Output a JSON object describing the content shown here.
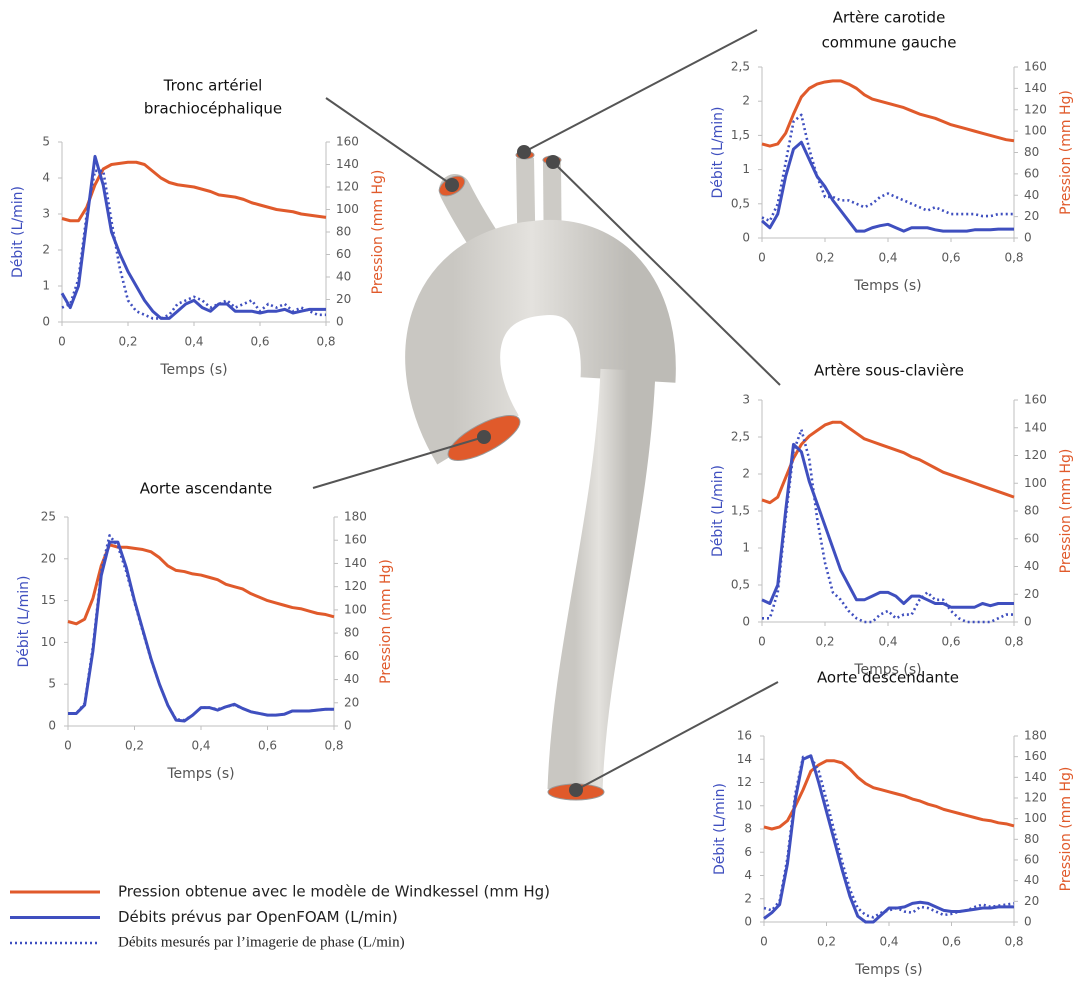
{
  "chart_data": [
    {
      "type": "line",
      "title": [
        "Tronc artériel",
        "brachiocéphalique"
      ],
      "xlabel": "Temps (s)",
      "ylabel": "Débit (L/min)",
      "y2label": "Pression (mm Hg)",
      "x": [
        0,
        0.025,
        0.05,
        0.075,
        0.1,
        0.125,
        0.15,
        0.175,
        0.2,
        0.225,
        0.25,
        0.275,
        0.3,
        0.325,
        0.35,
        0.375,
        0.4,
        0.425,
        0.45,
        0.475,
        0.5,
        0.525,
        0.55,
        0.575,
        0.6,
        0.625,
        0.65,
        0.675,
        0.7,
        0.725,
        0.75,
        0.775,
        0.8
      ],
      "series": [
        {
          "name": "Pression obtenue avec le modèle de Windkessel (mm Hg)",
          "color": "#e05a2b",
          "style": "solid",
          "axis": "y2",
          "values": [
            92,
            90,
            90,
            102,
            122,
            136,
            140,
            141,
            142,
            142,
            140,
            134,
            128,
            124,
            122,
            121,
            120,
            118,
            116,
            113,
            112,
            111,
            109,
            106,
            104,
            102,
            100,
            99,
            98,
            96,
            95,
            94,
            93
          ]
        },
        {
          "name": "Débits prévus par OpenFOAM (L/min)",
          "color": "#3f4fbf",
          "style": "solid",
          "values": [
            0.8,
            0.4,
            1.0,
            2.8,
            4.6,
            3.8,
            2.5,
            1.9,
            1.4,
            1.0,
            0.6,
            0.3,
            0.1,
            0.1,
            0.3,
            0.5,
            0.6,
            0.4,
            0.3,
            0.5,
            0.5,
            0.3,
            0.3,
            0.3,
            0.25,
            0.3,
            0.3,
            0.35,
            0.25,
            0.3,
            0.35,
            0.35,
            0.35
          ]
        },
        {
          "name": "Débits mesurés par l’imagerie de phase (L/min)",
          "color": "#3f4fbf",
          "style": "dotted",
          "values": [
            0.4,
            0.5,
            1.2,
            3.0,
            4.2,
            4.2,
            2.8,
            1.5,
            0.6,
            0.3,
            0.2,
            0.1,
            0.1,
            0.2,
            0.5,
            0.6,
            0.7,
            0.6,
            0.4,
            0.5,
            0.6,
            0.4,
            0.5,
            0.6,
            0.3,
            0.5,
            0.4,
            0.5,
            0.3,
            0.4,
            0.3,
            0.2,
            0.2
          ]
        }
      ],
      "xlim": [
        0,
        0.8
      ],
      "xticks": [
        0,
        {
          "value": 0.2,
          "label": "0,2"
        },
        {
          "value": 0.4,
          "label": "0,4"
        },
        {
          "value": 0.6,
          "label": "0,6"
        },
        {
          "value": 0.8,
          "label": "0,8"
        }
      ],
      "ylim": [
        0,
        5
      ],
      "yticks": [
        0,
        1,
        2,
        3,
        4,
        5
      ],
      "y2lim": [
        0,
        160
      ],
      "y2ticks": [
        0,
        20,
        40,
        60,
        80,
        100,
        120,
        140,
        160
      ]
    },
    {
      "type": "line",
      "title": [
        "Artère carotide",
        "commune gauche"
      ],
      "xlabel": "Temps (s)",
      "ylabel": "Débit (L/min)",
      "y2label": "Pression (mm Hg)",
      "x": [
        0,
        0.025,
        0.05,
        0.075,
        0.1,
        0.125,
        0.15,
        0.175,
        0.2,
        0.225,
        0.25,
        0.275,
        0.3,
        0.325,
        0.35,
        0.375,
        0.4,
        0.425,
        0.45,
        0.475,
        0.5,
        0.525,
        0.55,
        0.575,
        0.6,
        0.625,
        0.65,
        0.675,
        0.7,
        0.725,
        0.75,
        0.775,
        0.8
      ],
      "series": [
        {
          "color": "#e05a2b",
          "style": "solid",
          "axis": "y2",
          "values": [
            88,
            86,
            88,
            98,
            116,
            132,
            140,
            144,
            146,
            147,
            147,
            144,
            140,
            134,
            130,
            128,
            126,
            124,
            122,
            119,
            116,
            114,
            112,
            109,
            106,
            104,
            102,
            100,
            98,
            96,
            94,
            92,
            91
          ]
        },
        {
          "color": "#3f4fbf",
          "style": "solid",
          "values": [
            0.25,
            0.15,
            0.35,
            0.9,
            1.3,
            1.4,
            1.15,
            0.9,
            0.75,
            0.55,
            0.4,
            0.25,
            0.1,
            0.1,
            0.15,
            0.18,
            0.2,
            0.15,
            0.1,
            0.15,
            0.15,
            0.15,
            0.12,
            0.1,
            0.1,
            0.1,
            0.1,
            0.12,
            0.12,
            0.12,
            0.13,
            0.13,
            0.13
          ]
        },
        {
          "color": "#3f4fbf",
          "style": "dotted",
          "values": [
            0.3,
            0.25,
            0.5,
            1.1,
            1.7,
            1.8,
            1.3,
            0.9,
            0.6,
            0.6,
            0.55,
            0.55,
            0.5,
            0.45,
            0.5,
            0.6,
            0.65,
            0.6,
            0.55,
            0.5,
            0.45,
            0.4,
            0.45,
            0.4,
            0.35,
            0.35,
            0.35,
            0.35,
            0.32,
            0.32,
            0.35,
            0.35,
            0.35
          ]
        }
      ],
      "xlim": [
        0,
        0.8
      ],
      "xticks": [
        0,
        {
          "value": 0.2,
          "label": "0,2"
        },
        {
          "value": 0.4,
          "label": "0,4"
        },
        {
          "value": 0.6,
          "label": "0,6"
        },
        {
          "value": 0.8,
          "label": "0,8"
        }
      ],
      "ylim": [
        0,
        2.5
      ],
      "yticks": [
        0,
        {
          "value": 0.5,
          "label": "0,5"
        },
        1,
        {
          "value": 1.5,
          "label": "1,5"
        },
        2,
        {
          "value": 2.5,
          "label": "2,5"
        }
      ],
      "y2lim": [
        0,
        160
      ],
      "y2ticks": [
        0,
        20,
        40,
        60,
        80,
        100,
        120,
        140,
        160
      ]
    },
    {
      "type": "line",
      "title": [
        "Artère sous-clavière"
      ],
      "xlabel": "Temps (s)",
      "ylabel": "Débit (L/min)",
      "y2label": "Pression (mm Hg)",
      "x": [
        0,
        0.025,
        0.05,
        0.075,
        0.1,
        0.125,
        0.15,
        0.175,
        0.2,
        0.225,
        0.25,
        0.275,
        0.3,
        0.325,
        0.35,
        0.375,
        0.4,
        0.425,
        0.45,
        0.475,
        0.5,
        0.525,
        0.55,
        0.575,
        0.6,
        0.625,
        0.65,
        0.675,
        0.7,
        0.725,
        0.75,
        0.775,
        0.8
      ],
      "series": [
        {
          "color": "#e05a2b",
          "style": "solid",
          "axis": "y2",
          "values": [
            88,
            86,
            90,
            104,
            118,
            128,
            134,
            138,
            142,
            144,
            144,
            140,
            136,
            132,
            130,
            128,
            126,
            124,
            122,
            119,
            117,
            114,
            111,
            108,
            106,
            104,
            102,
            100,
            98,
            96,
            94,
            92,
            90
          ]
        },
        {
          "color": "#3f4fbf",
          "style": "solid",
          "values": [
            0.3,
            0.25,
            0.5,
            1.5,
            2.4,
            2.3,
            1.9,
            1.6,
            1.3,
            1.0,
            0.7,
            0.5,
            0.3,
            0.3,
            0.35,
            0.4,
            0.4,
            0.35,
            0.25,
            0.35,
            0.35,
            0.3,
            0.25,
            0.25,
            0.2,
            0.2,
            0.2,
            0.2,
            0.25,
            0.22,
            0.25,
            0.25,
            0.25
          ]
        },
        {
          "color": "#3f4fbf",
          "style": "dotted",
          "values": [
            0.05,
            0.05,
            0.4,
            1.4,
            2.3,
            2.6,
            2.2,
            1.4,
            0.8,
            0.4,
            0.3,
            0.15,
            0.05,
            0,
            0,
            0.1,
            0.15,
            0.05,
            0.1,
            0.1,
            0.3,
            0.4,
            0.3,
            0.3,
            0.15,
            0.05,
            0,
            0,
            0,
            0,
            0.05,
            0.1,
            0.1
          ]
        }
      ],
      "xlim": [
        0,
        0.8
      ],
      "xticks": [
        0,
        {
          "value": 0.2,
          "label": "0,2"
        },
        {
          "value": 0.4,
          "label": "0,4"
        },
        {
          "value": 0.6,
          "label": "0,6"
        },
        {
          "value": 0.8,
          "label": "0,8"
        }
      ],
      "ylim": [
        0,
        3
      ],
      "yticks": [
        0,
        {
          "value": 0.5,
          "label": "0,5"
        },
        1,
        {
          "value": 1.5,
          "label": "1,5"
        },
        2,
        {
          "value": 2.5,
          "label": "2,5"
        },
        3
      ],
      "y2lim": [
        0,
        160
      ],
      "y2ticks": [
        0,
        20,
        40,
        60,
        80,
        100,
        120,
        140,
        160
      ]
    },
    {
      "type": "line",
      "title": [
        "Aorte ascendante"
      ],
      "xlabel": "Temps (s)",
      "ylabel": "Débit  (L/min)",
      "y2label": "Pression (mm Hg)",
      "x": [
        0,
        0.025,
        0.05,
        0.075,
        0.1,
        0.125,
        0.15,
        0.175,
        0.2,
        0.225,
        0.25,
        0.275,
        0.3,
        0.325,
        0.35,
        0.375,
        0.4,
        0.425,
        0.45,
        0.475,
        0.5,
        0.525,
        0.55,
        0.575,
        0.6,
        0.625,
        0.65,
        0.675,
        0.7,
        0.725,
        0.75,
        0.775,
        0.8
      ],
      "series": [
        {
          "color": "#e05a2b",
          "style": "solid",
          "axis": "y2",
          "values": [
            90,
            88,
            92,
            110,
            138,
            156,
            154,
            154,
            153,
            152,
            150,
            145,
            138,
            134,
            133,
            131,
            130,
            128,
            126,
            122,
            120,
            118,
            114,
            111,
            108,
            106,
            104,
            102,
            101,
            99,
            97,
            96,
            94
          ]
        },
        {
          "color": "#3f4fbf",
          "style": "solid",
          "values": [
            1.5,
            1.5,
            2.5,
            9,
            18,
            22,
            22,
            19,
            15,
            11.5,
            8,
            5,
            2.5,
            0.7,
            0.6,
            1.3,
            2.2,
            2.2,
            1.9,
            2.3,
            2.6,
            2.1,
            1.7,
            1.5,
            1.3,
            1.3,
            1.4,
            1.8,
            1.8,
            1.8,
            1.9,
            2.0,
            2.0
          ]
        },
        {
          "color": "#3f4fbf",
          "style": "dotted",
          "values": [
            1.5,
            1.5,
            2.7,
            9.5,
            18.5,
            22.8,
            21.5,
            18.5,
            14.8,
            11.3,
            7.9,
            5,
            2.5,
            0.8,
            0.7,
            1.3,
            2.2,
            2.2,
            2,
            2.3,
            2.5,
            2.1,
            1.7,
            1.5,
            1.3,
            1.3,
            1.4,
            1.8,
            1.8,
            1.8,
            1.9,
            2.0,
            2.0
          ]
        }
      ],
      "xlim": [
        0,
        0.8
      ],
      "xticks": [
        0,
        {
          "value": 0.2,
          "label": "0,2"
        },
        {
          "value": 0.4,
          "label": "0,4"
        },
        {
          "value": 0.6,
          "label": "0,6"
        },
        {
          "value": 0.8,
          "label": "0,8"
        }
      ],
      "ylim": [
        0,
        25
      ],
      "yticks": [
        0,
        5,
        10,
        15,
        20,
        25
      ],
      "y2lim": [
        0,
        180
      ],
      "y2ticks": [
        0,
        20,
        40,
        60,
        80,
        100,
        120,
        140,
        160,
        180
      ]
    },
    {
      "type": "line",
      "title": [
        "Aorte descendante"
      ],
      "xlabel": "Temps (s)",
      "ylabel": "Débit (L/min)",
      "y2label": "Pression (mm Hg)",
      "x": [
        0,
        0.025,
        0.05,
        0.075,
        0.1,
        0.125,
        0.15,
        0.175,
        0.2,
        0.225,
        0.25,
        0.275,
        0.3,
        0.325,
        0.35,
        0.375,
        0.4,
        0.425,
        0.45,
        0.475,
        0.5,
        0.525,
        0.55,
        0.575,
        0.6,
        0.625,
        0.65,
        0.675,
        0.7,
        0.725,
        0.75,
        0.775,
        0.8
      ],
      "series": [
        {
          "color": "#e05a2b",
          "style": "solid",
          "axis": "y2",
          "values": [
            92,
            90,
            92,
            98,
            112,
            128,
            146,
            152,
            156,
            156,
            154,
            148,
            140,
            134,
            130,
            128,
            126,
            124,
            122,
            119,
            117,
            114,
            112,
            109,
            107,
            105,
            103,
            101,
            99,
            98,
            96,
            95,
            93
          ]
        },
        {
          "color": "#3f4fbf",
          "style": "solid",
          "values": [
            0.3,
            0.8,
            1.5,
            5,
            10.5,
            14,
            14.3,
            12,
            9.5,
            7,
            4.5,
            2.2,
            0.5,
            0,
            0,
            0.6,
            1.2,
            1.2,
            1.3,
            1.6,
            1.7,
            1.6,
            1.3,
            1.0,
            0.9,
            0.9,
            1.0,
            1.1,
            1.2,
            1.2,
            1.3,
            1.3,
            1.3
          ]
        },
        {
          "color": "#3f4fbf",
          "style": "dotted",
          "values": [
            1.2,
            1.0,
            1.8,
            5.5,
            11,
            14.2,
            14.2,
            13,
            10.5,
            7.8,
            5.2,
            2.8,
            1.2,
            0.6,
            0.4,
            0.8,
            1.0,
            1.2,
            0.9,
            0.8,
            1.3,
            1.2,
            0.9,
            0.6,
            0.7,
            0.9,
            1.0,
            1.3,
            1.5,
            1.3,
            1.4,
            1.5,
            1.6
          ]
        }
      ],
      "xlim": [
        0,
        0.8
      ],
      "xticks": [
        0,
        {
          "value": 0.2,
          "label": "0,2"
        },
        {
          "value": 0.4,
          "label": "0,4"
        },
        {
          "value": 0.6,
          "label": "0,6"
        },
        {
          "value": 0.8,
          "label": "0,8"
        }
      ],
      "ylim": [
        0,
        16
      ],
      "yticks": [
        0,
        2,
        4,
        6,
        8,
        10,
        12,
        14,
        16
      ],
      "y2lim": [
        0,
        180
      ],
      "y2ticks": [
        0,
        20,
        40,
        60,
        80,
        100,
        120,
        140,
        160,
        180
      ]
    }
  ]
}
